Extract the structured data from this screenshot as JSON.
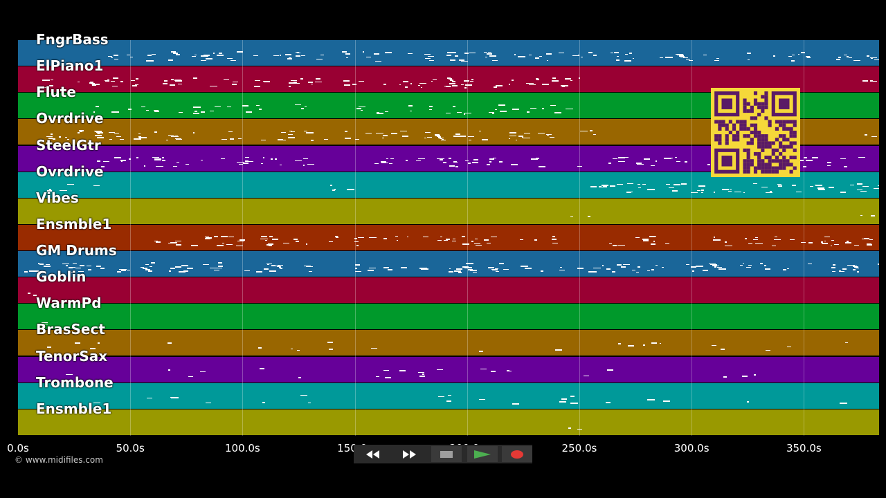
{
  "tracks": [
    {
      "label": "FngrBass",
      "color": "#1a6699"
    },
    {
      "label": "ElPiano1",
      "color": "#990033"
    },
    {
      "label": "Flute",
      "color": "#00992b"
    },
    {
      "label": "Ovrdrive",
      "color": "#996600"
    },
    {
      "label": "SteelGtr",
      "color": "#660099"
    },
    {
      "label": "Ovrdrive",
      "color": "#009999"
    },
    {
      "label": "Vibes",
      "color": "#999900"
    },
    {
      "label": "Ensmble1",
      "color": "#992b00"
    },
    {
      "label": "GM Drums",
      "color": "#1a6699"
    },
    {
      "label": "Goblin",
      "color": "#990033"
    },
    {
      "label": "WarmPd",
      "color": "#00992b"
    },
    {
      "label": "BrasSect",
      "color": "#996600"
    },
    {
      "label": "TenorSax",
      "color": "#660099"
    },
    {
      "label": "Trombone",
      "color": "#009999"
    },
    {
      "label": "Ensmble1",
      "color": "#999900"
    }
  ],
  "timeline": {
    "max_seconds": 383.5,
    "ticks": [
      {
        "label": "0.0s",
        "value": 0
      },
      {
        "label": "50.0s",
        "value": 50
      },
      {
        "label": "100.0s",
        "value": 100
      },
      {
        "label": "150.0s",
        "value": 150
      },
      {
        "label": "200.0s",
        "value": 200
      },
      {
        "label": "250.0s",
        "value": 250
      },
      {
        "label": "300.0s",
        "value": 300
      },
      {
        "label": "350.0s",
        "value": 350
      }
    ]
  },
  "qr_code": {
    "icon": "qr-code-icon",
    "color": "#f5d83a",
    "module_color": "#5a1a66"
  },
  "copyright": "© www.midifiles.com",
  "transport": {
    "rewind_icon": "rewind-icon",
    "fast_forward_icon": "fast-forward-icon",
    "stop_icon": "stop-icon",
    "play_icon": "play-icon",
    "record_icon": "record-icon",
    "play_color": "#4caf50",
    "record_color": "#e53935"
  }
}
